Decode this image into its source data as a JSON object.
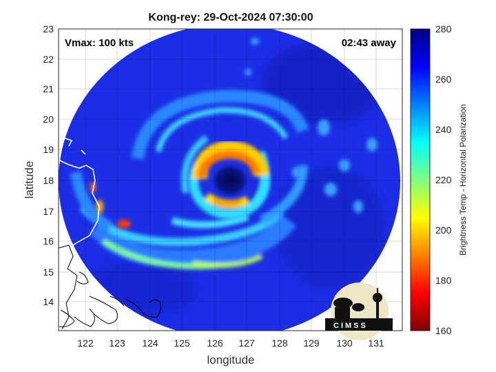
{
  "title": "Kong-rey: 29-Oct-2024 07:30:00",
  "vmax_label": "Vmax: 100 kts",
  "time_away": "02:43 away",
  "xlabel": "longitude",
  "ylabel": "latitude",
  "x_ticks": [
    "122",
    "123",
    "124",
    "125",
    "126",
    "127",
    "128",
    "129",
    "130",
    "131"
  ],
  "y_ticks": [
    "23",
    "22",
    "21",
    "20",
    "19",
    "18",
    "17",
    "16",
    "15",
    "14"
  ],
  "x_range": [
    121.2,
    131.7
  ],
  "y_range": [
    13.2,
    23.0
  ],
  "colorbar": {
    "label": "Brightness Temp - Horizontal Polarization",
    "ticks": [
      "280",
      "260",
      "240",
      "220",
      "200",
      "180",
      "160"
    ],
    "range": [
      160,
      280
    ]
  },
  "storm_center": {
    "lon": 126.5,
    "lat": 18.1
  },
  "logo_text": "CIMSS",
  "colors": {
    "background_swath": "#1a2fe0",
    "eye": "#05084f",
    "eyewall": "#ff8a00",
    "coast": "#ffffff"
  }
}
